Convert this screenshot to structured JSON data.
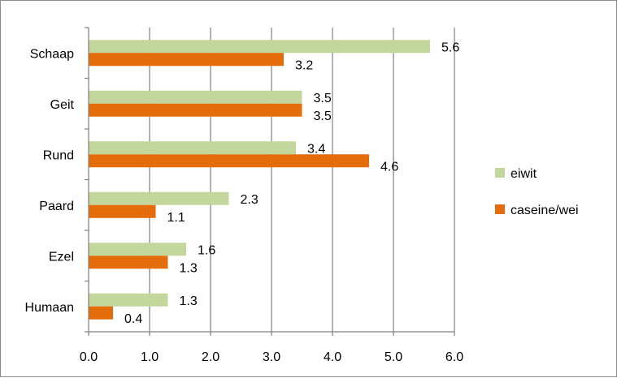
{
  "chart_data": {
    "type": "bar",
    "orientation": "horizontal",
    "categories": [
      "Schaap",
      "Geit",
      "Rund",
      "Paard",
      "Ezel",
      "Humaan"
    ],
    "series": [
      {
        "name": "eiwit",
        "values": [
          5.6,
          3.5,
          3.4,
          2.3,
          1.6,
          1.3
        ],
        "color": "#c3d69b"
      },
      {
        "name": "caseine/wei",
        "values": [
          3.2,
          3.5,
          4.6,
          1.1,
          1.3,
          0.4
        ],
        "color": "#e46c0a"
      }
    ],
    "x_ticks": [
      "0.0",
      "1.0",
      "2.0",
      "3.0",
      "4.0",
      "5.0",
      "6.0"
    ],
    "xlim": [
      0,
      6
    ],
    "grid": "vertical",
    "legend_position": "right",
    "title": "",
    "xlabel": "",
    "ylabel": ""
  }
}
